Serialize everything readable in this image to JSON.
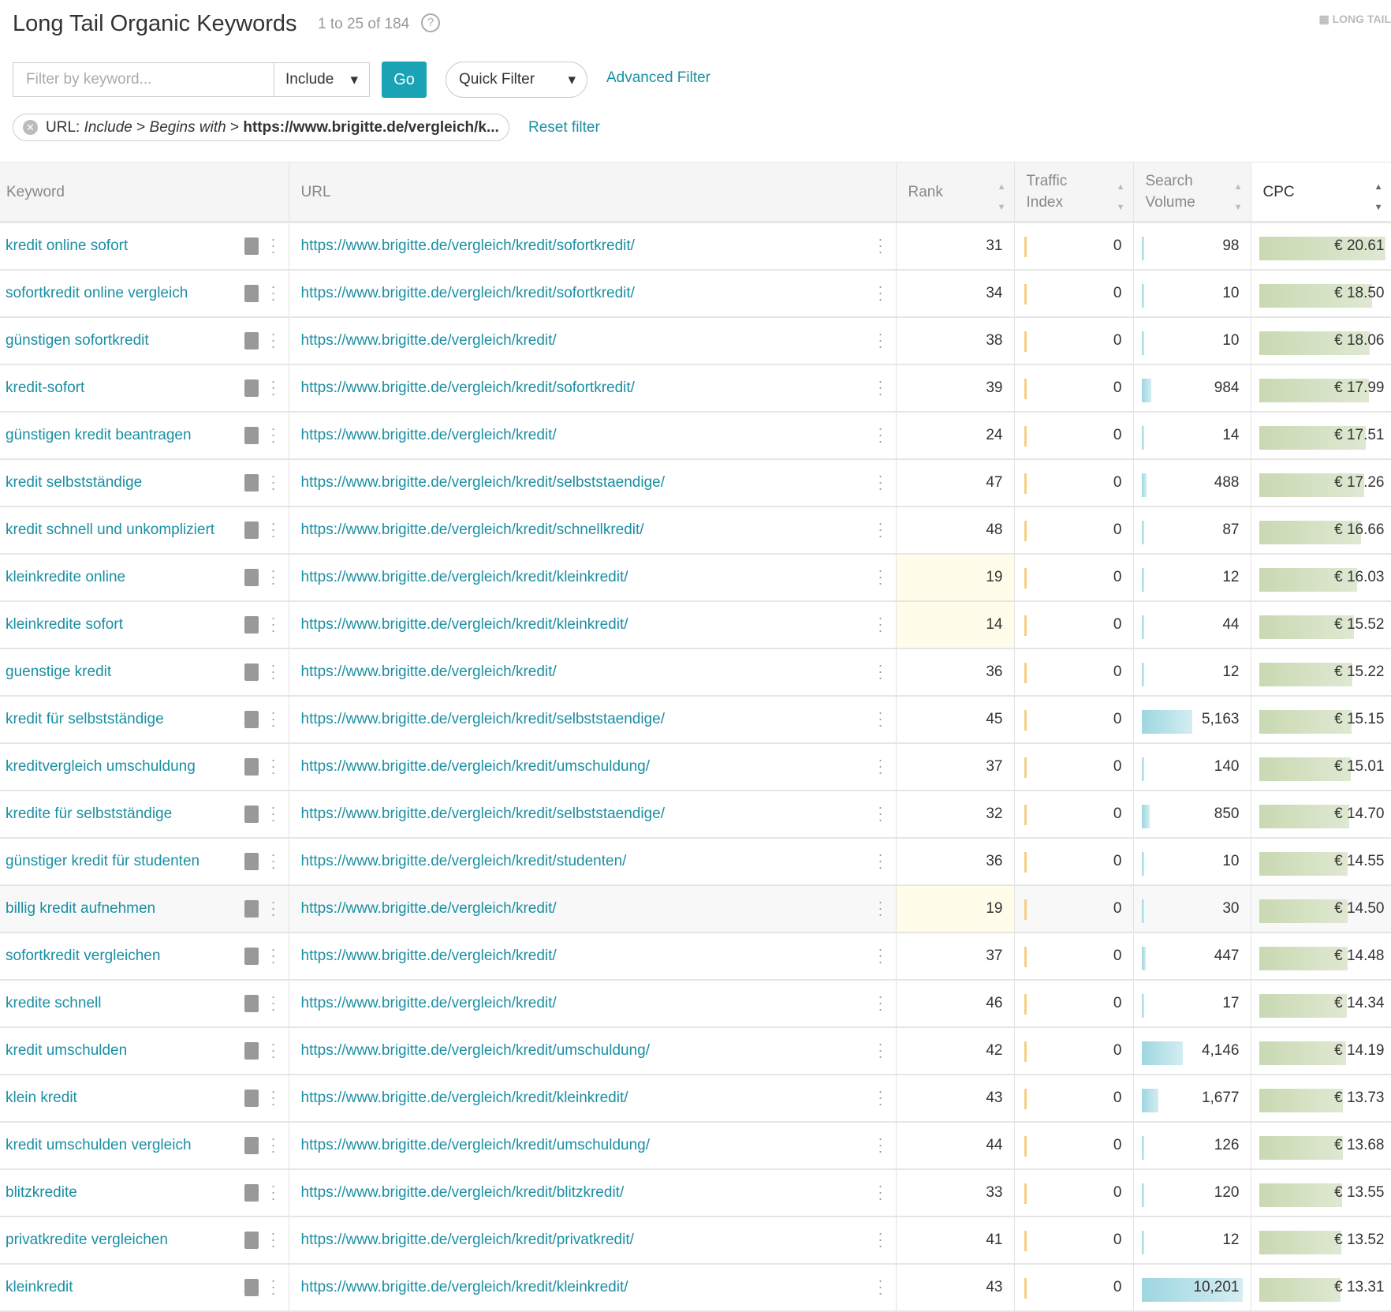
{
  "header": {
    "title": "Long Tail Organic Keywords",
    "count": "1 to 25 of 184",
    "help": "?",
    "badge": "LONG TAIL"
  },
  "filters": {
    "keyword_placeholder": "Filter by keyword...",
    "include": "Include",
    "go": "Go",
    "quick_filter": "Quick Filter",
    "advanced": "Advanced Filter",
    "active_chip": {
      "field": "URL:",
      "mode": "Include",
      "op": "Begins with",
      "value": "https://www.brigitte.de/vergleich/k..."
    },
    "reset": "Reset filter"
  },
  "columns": {
    "keyword": "Keyword",
    "url": "URL",
    "rank": "Rank",
    "traffic1": "Traffic",
    "traffic2": "Index",
    "search1": "Search",
    "search2": "Volume",
    "cpc": "CPC"
  },
  "colors": {
    "link": "#1a8fa3",
    "go": "#1aa3b5"
  },
  "sv_max": 10201,
  "cpc_max": 20.61,
  "rows": [
    {
      "keyword": "kredit online sofort",
      "url": "https://www.brigitte.de/vergleich/kredit/sofortkredit/",
      "rank": "31",
      "traffic": "0",
      "volume": "98",
      "cpc": "€ 20.61"
    },
    {
      "keyword": "sofortkredit online vergleich",
      "url": "https://www.brigitte.de/vergleich/kredit/sofortkredit/",
      "rank": "34",
      "traffic": "0",
      "volume": "10",
      "cpc": "€ 18.50"
    },
    {
      "keyword": "günstigen sofortkredit",
      "url": "https://www.brigitte.de/vergleich/kredit/",
      "rank": "38",
      "traffic": "0",
      "volume": "10",
      "cpc": "€ 18.06"
    },
    {
      "keyword": "kredit-sofort",
      "url": "https://www.brigitte.de/vergleich/kredit/sofortkredit/",
      "rank": "39",
      "traffic": "0",
      "volume": "984",
      "cpc": "€ 17.99"
    },
    {
      "keyword": "günstigen kredit beantragen",
      "url": "https://www.brigitte.de/vergleich/kredit/",
      "rank": "24",
      "traffic": "0",
      "volume": "14",
      "cpc": "€ 17.51"
    },
    {
      "keyword": "kredit selbstständige",
      "url": "https://www.brigitte.de/vergleich/kredit/selbststaendige/",
      "rank": "47",
      "traffic": "0",
      "volume": "488",
      "cpc": "€ 17.26"
    },
    {
      "keyword": "kredit schnell und unkompliziert",
      "url": "https://www.brigitte.de/vergleich/kredit/schnellkredit/",
      "rank": "48",
      "traffic": "0",
      "volume": "87",
      "cpc": "€ 16.66"
    },
    {
      "keyword": "kleinkredite online",
      "url": "https://www.brigitte.de/vergleich/kredit/kleinkredit/",
      "rank": "19",
      "traffic": "0",
      "volume": "12",
      "cpc": "€ 16.03",
      "hl": true
    },
    {
      "keyword": "kleinkredite sofort",
      "url": "https://www.brigitte.de/vergleich/kredit/kleinkredit/",
      "rank": "14",
      "traffic": "0",
      "volume": "44",
      "cpc": "€ 15.52",
      "hl": true
    },
    {
      "keyword": "guenstige kredit",
      "url": "https://www.brigitte.de/vergleich/kredit/",
      "rank": "36",
      "traffic": "0",
      "volume": "12",
      "cpc": "€ 15.22"
    },
    {
      "keyword": "kredit für selbstständige",
      "url": "https://www.brigitte.de/vergleich/kredit/selbststaendige/",
      "rank": "45",
      "traffic": "0",
      "volume": "5,163",
      "cpc": "€ 15.15"
    },
    {
      "keyword": "kreditvergleich umschuldung",
      "url": "https://www.brigitte.de/vergleich/kredit/umschuldung/",
      "rank": "37",
      "traffic": "0",
      "volume": "140",
      "cpc": "€ 15.01"
    },
    {
      "keyword": "kredite für selbstständige",
      "url": "https://www.brigitte.de/vergleich/kredit/selbststaendige/",
      "rank": "32",
      "traffic": "0",
      "volume": "850",
      "cpc": "€ 14.70"
    },
    {
      "keyword": "günstiger kredit für studenten",
      "url": "https://www.brigitte.de/vergleich/kredit/studenten/",
      "rank": "36",
      "traffic": "0",
      "volume": "10",
      "cpc": "€ 14.55"
    },
    {
      "keyword": "billig kredit aufnehmen",
      "url": "https://www.brigitte.de/vergleich/kredit/",
      "rank": "19",
      "traffic": "0",
      "volume": "30",
      "cpc": "€ 14.50",
      "hl": true,
      "hover": true
    },
    {
      "keyword": "sofortkredit vergleichen",
      "url": "https://www.brigitte.de/vergleich/kredit/",
      "rank": "37",
      "traffic": "0",
      "volume": "447",
      "cpc": "€ 14.48"
    },
    {
      "keyword": "kredite schnell",
      "url": "https://www.brigitte.de/vergleich/kredit/",
      "rank": "46",
      "traffic": "0",
      "volume": "17",
      "cpc": "€ 14.34"
    },
    {
      "keyword": "kredit umschulden",
      "url": "https://www.brigitte.de/vergleich/kredit/umschuldung/",
      "rank": "42",
      "traffic": "0",
      "volume": "4,146",
      "cpc": "€ 14.19"
    },
    {
      "keyword": "klein kredit",
      "url": "https://www.brigitte.de/vergleich/kredit/kleinkredit/",
      "rank": "43",
      "traffic": "0",
      "volume": "1,677",
      "cpc": "€ 13.73"
    },
    {
      "keyword": "kredit umschulden vergleich",
      "url": "https://www.brigitte.de/vergleich/kredit/umschuldung/",
      "rank": "44",
      "traffic": "0",
      "volume": "126",
      "cpc": "€ 13.68"
    },
    {
      "keyword": "blitzkredite",
      "url": "https://www.brigitte.de/vergleich/kredit/blitzkredit/",
      "rank": "33",
      "traffic": "0",
      "volume": "120",
      "cpc": "€ 13.55"
    },
    {
      "keyword": "privatkredite vergleichen",
      "url": "https://www.brigitte.de/vergleich/kredit/privatkredit/",
      "rank": "41",
      "traffic": "0",
      "volume": "12",
      "cpc": "€ 13.52"
    },
    {
      "keyword": "kleinkredit",
      "url": "https://www.brigitte.de/vergleich/kredit/kleinkredit/",
      "rank": "43",
      "traffic": "0",
      "volume": "10,201",
      "cpc": "€ 13.31"
    }
  ]
}
